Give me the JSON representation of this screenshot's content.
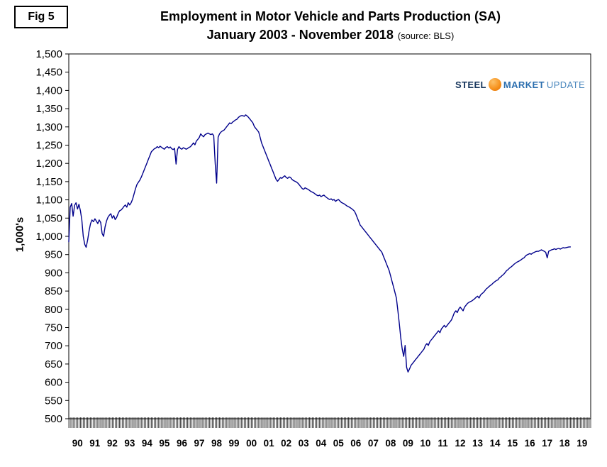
{
  "header": {
    "fig_label": "Fig 5",
    "title_line1": "Employment in Motor Vehicle and Parts Production (SA)",
    "title_line2": "January 2003 - November 2018",
    "source": "(source: BLS)"
  },
  "logo": {
    "steel": "STEEL",
    "market": "MARKET",
    "update": "UPDATE",
    "steel_color": "#17365d",
    "market_color": "#2c6faf",
    "globe_color": "#f79420"
  },
  "chart_data": {
    "type": "line",
    "title": "Employment in Motor Vehicle and Parts Production (SA)",
    "subtitle": "January 2003 - November 2018 (source: BLS)",
    "xlabel": "",
    "ylabel": "1,000's",
    "ylim": [
      500,
      1500
    ],
    "ytick_step": 50,
    "grid": "off",
    "legend": "none",
    "x_domain": [
      1990,
      2020
    ],
    "x_unit": "year (monthly data, Jan 1990 - Nov 2018)",
    "x_tick_labels": [
      "90",
      "91",
      "92",
      "93",
      "94",
      "95",
      "96",
      "97",
      "98",
      "99",
      "00",
      "01",
      "02",
      "03",
      "04",
      "05",
      "06",
      "07",
      "08",
      "09",
      "10",
      "11",
      "12",
      "13",
      "14",
      "15",
      "16",
      "17",
      "18",
      "19"
    ],
    "y_tick_labels": [
      "500",
      "550",
      "600",
      "650",
      "700",
      "750",
      "800",
      "850",
      "900",
      "950",
      "1,000",
      "1,050",
      "1,100",
      "1,150",
      "1,200",
      "1,250",
      "1,300",
      "1,350",
      "1,400",
      "1,450",
      "1,500"
    ],
    "series": [
      {
        "name": "Motor vehicle and parts employment (1,000's)",
        "color": "#00008b",
        "start": "1990-01",
        "end": "2018-11",
        "values": [
          985,
          1080,
          1090,
          1055,
          1085,
          1092,
          1075,
          1088,
          1070,
          1045,
          1000,
          978,
          970,
          990,
          1015,
          1035,
          1045,
          1040,
          1048,
          1042,
          1035,
          1045,
          1038,
          1008,
          1000,
          1025,
          1042,
          1052,
          1058,
          1062,
          1050,
          1057,
          1046,
          1052,
          1062,
          1070,
          1072,
          1076,
          1082,
          1086,
          1080,
          1092,
          1086,
          1092,
          1102,
          1116,
          1130,
          1142,
          1148,
          1154,
          1162,
          1172,
          1182,
          1192,
          1202,
          1212,
          1222,
          1232,
          1236,
          1240,
          1242,
          1246,
          1243,
          1247,
          1244,
          1241,
          1239,
          1244,
          1246,
          1242,
          1245,
          1240,
          1238,
          1241,
          1198,
          1238,
          1246,
          1241,
          1239,
          1243,
          1241,
          1239,
          1241,
          1244,
          1246,
          1251,
          1256,
          1251,
          1261,
          1266,
          1271,
          1281,
          1276,
          1273,
          1279,
          1281,
          1283,
          1281,
          1279,
          1281,
          1276,
          1199,
          1146,
          1272,
          1281,
          1286,
          1289,
          1291,
          1296,
          1301,
          1306,
          1311,
          1309,
          1313,
          1316,
          1319,
          1321,
          1326,
          1329,
          1331,
          1331,
          1329,
          1333,
          1330,
          1326,
          1321,
          1316,
          1311,
          1301,
          1296,
          1291,
          1286,
          1271,
          1256,
          1246,
          1236,
          1226,
          1216,
          1206,
          1196,
          1186,
          1176,
          1166,
          1156,
          1151,
          1156,
          1161,
          1159,
          1163,
          1166,
          1161,
          1159,
          1163,
          1161,
          1156,
          1153,
          1151,
          1149,
          1146,
          1141,
          1136,
          1131,
          1129,
          1133,
          1131,
          1129,
          1126,
          1123,
          1121,
          1119,
          1116,
          1113,
          1111,
          1113,
          1109,
          1111,
          1113,
          1109,
          1106,
          1103,
          1101,
          1103,
          1099,
          1101,
          1096,
          1099,
          1101,
          1097,
          1093,
          1091,
          1089,
          1086,
          1083,
          1081,
          1079,
          1076,
          1073,
          1069,
          1061,
          1051,
          1041,
          1031,
          1026,
          1021,
          1016,
          1011,
          1006,
          1001,
          996,
          991,
          986,
          981,
          976,
          971,
          966,
          961,
          956,
          946,
          936,
          926,
          916,
          906,
          891,
          876,
          861,
          846,
          831,
          796,
          761,
          721,
          691,
          671,
          701,
          641,
          628,
          636,
          646,
          651,
          656,
          661,
          666,
          671,
          676,
          681,
          686,
          691,
          701,
          706,
          701,
          711,
          716,
          721,
          726,
          731,
          736,
          741,
          736,
          746,
          751,
          756,
          751,
          756,
          761,
          766,
          771,
          781,
          791,
          796,
          791,
          801,
          806,
          801,
          796,
          806,
          811,
          816,
          819,
          821,
          823,
          826,
          829,
          833,
          836,
          831,
          839,
          843,
          846,
          851,
          856,
          859,
          863,
          866,
          869,
          873,
          876,
          879,
          881,
          886,
          889,
          893,
          896,
          901,
          906,
          909,
          913,
          916,
          919,
          923,
          926,
          929,
          931,
          933,
          936,
          939,
          941,
          946,
          949,
          951,
          953,
          951,
          954,
          956,
          958,
          959,
          959,
          961,
          963,
          961,
          959,
          956,
          941,
          959,
          961,
          963,
          964,
          966,
          964,
          966,
          967,
          965,
          967,
          969,
          968,
          969,
          970,
          971,
          971
        ]
      }
    ]
  }
}
